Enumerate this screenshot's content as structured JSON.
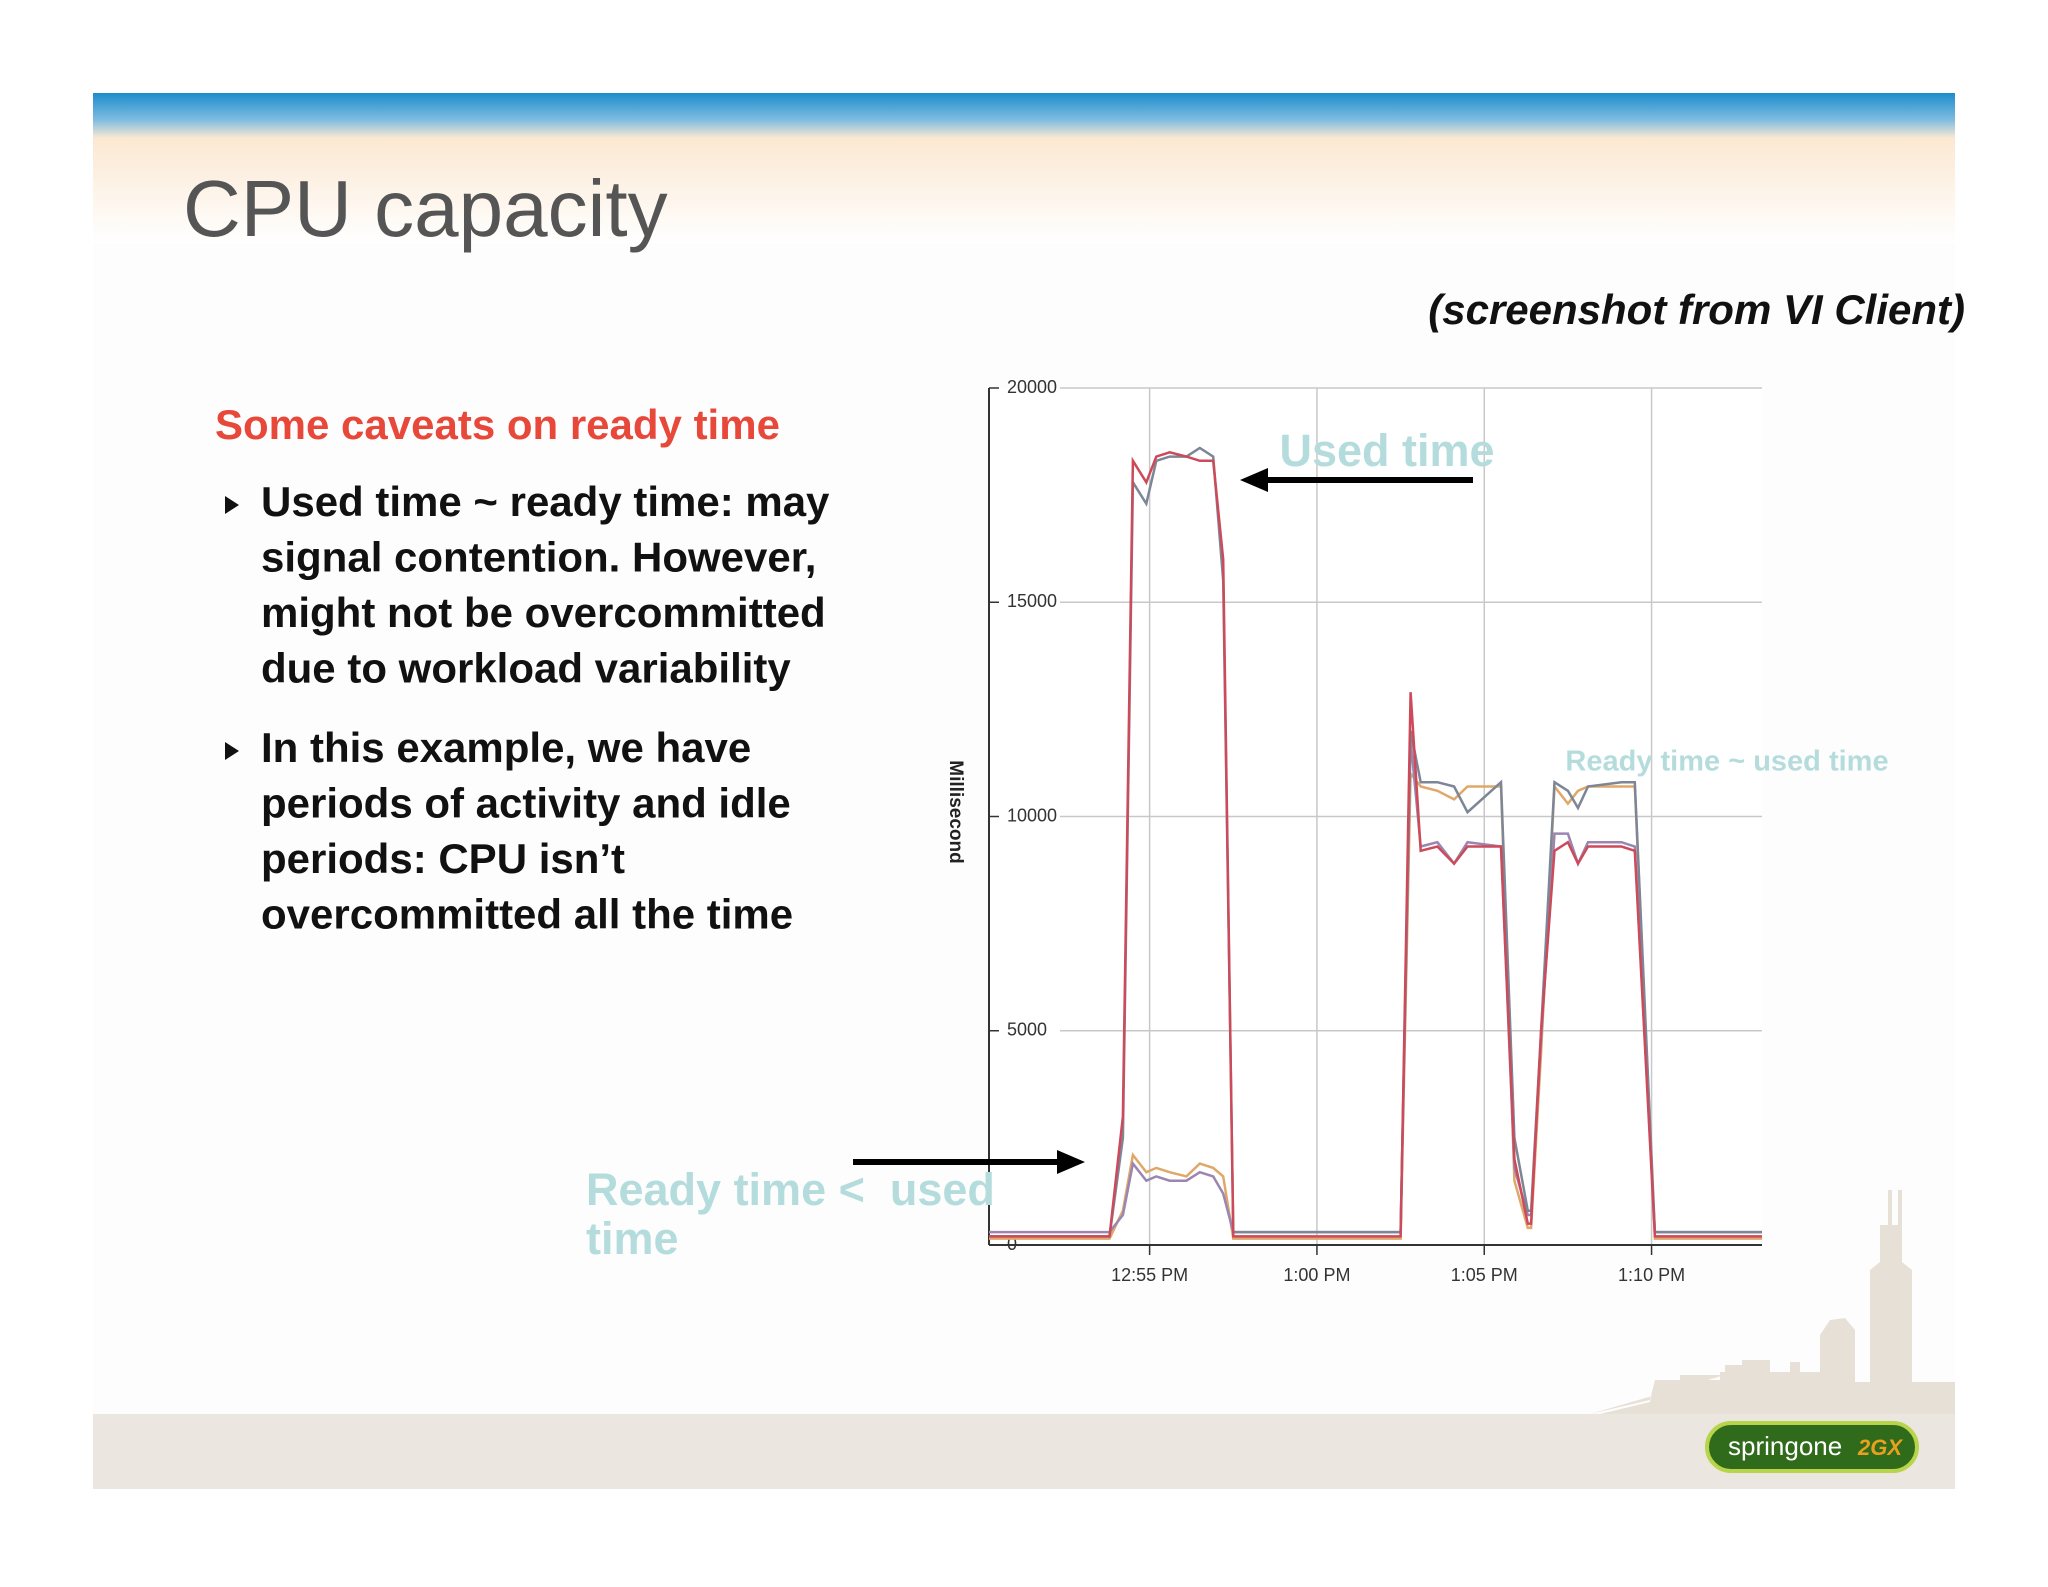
{
  "title": "CPU capacity",
  "note": "(screenshot from VI Client)",
  "subtitle": "Some caveats on ready time",
  "bullets": [
    [
      "Used time ~ ready time: may",
      "signal contention. However,",
      "might not be overcommitted",
      "due to workload variability"
    ],
    [
      "In this example, we have",
      "periods of activity and idle",
      "periods: CPU isn’t",
      "overcommitted all the time"
    ]
  ],
  "footer": {
    "logo": [
      "springone",
      "2GX"
    ]
  },
  "chart_data": {
    "type": "line",
    "ylabel": "Millisecond",
    "x": [
      50.2,
      53.8,
      54.2,
      54.5,
      54.9,
      55.2,
      55.6,
      56.1,
      56.5,
      56.9,
      57.2,
      57.5,
      62.5,
      62.8,
      63.1,
      63.6,
      64.1,
      64.5,
      65.5,
      65.9,
      66.3,
      66.4,
      66.7,
      67.1,
      67.5,
      67.8,
      68.1,
      69.1,
      69.5,
      70.1,
      73.3
    ],
    "series": [
      {
        "color": "#e0a868",
        "values": [
          150,
          150,
          800,
          2100,
          1700,
          1800,
          1700,
          1600,
          1900,
          1800,
          1600,
          150,
          150,
          11000,
          10700,
          10600,
          10400,
          10700,
          10700,
          1500,
          400,
          400,
          4500,
          10700,
          10300,
          10600,
          10700,
          10700,
          10700,
          150,
          150
        ]
      },
      {
        "color": "#9a86b0",
        "values": [
          300,
          300,
          700,
          1900,
          1500,
          1600,
          1500,
          1500,
          1700,
          1600,
          1200,
          300,
          300,
          11800,
          9300,
          9400,
          8900,
          9400,
          9300,
          1800,
          700,
          700,
          4800,
          9600,
          9600,
          8900,
          9400,
          9400,
          9300,
          300,
          300
        ]
      },
      {
        "color": "#7d8696",
        "values": [
          200,
          200,
          2500,
          17800,
          17300,
          18300,
          18400,
          18400,
          18600,
          18400,
          15500,
          300,
          300,
          12000,
          10800,
          10800,
          10700,
          10100,
          10800,
          2500,
          800,
          800,
          5000,
          10800,
          10600,
          10200,
          10700,
          10800,
          10800,
          300,
          300
        ]
      },
      {
        "color": "#cc4a5a",
        "values": [
          200,
          200,
          3000,
          18300,
          17800,
          18400,
          18500,
          18400,
          18300,
          18300,
          16000,
          200,
          200,
          12900,
          9200,
          9300,
          8900,
          9300,
          9300,
          2000,
          500,
          500,
          5000,
          9200,
          9400,
          8900,
          9300,
          9300,
          9200,
          200,
          200
        ]
      }
    ],
    "xlim": [
      50.2,
      73.3
    ],
    "xticks": [
      {
        "value": 55,
        "label": "12:55 PM"
      },
      {
        "value": 60,
        "label": "1:00 PM"
      },
      {
        "value": 65,
        "label": "1:05 PM"
      },
      {
        "value": 70,
        "label": "1:10 PM"
      }
    ],
    "ylim": [
      0,
      20000
    ],
    "yticks": [
      0,
      5000,
      10000,
      15000,
      20000
    ],
    "grid": true,
    "annotations": [
      [
        "Used time"
      ],
      [
        "Ready time ~ used time"
      ],
      [
        "Ready time <  used",
        "time"
      ]
    ]
  }
}
